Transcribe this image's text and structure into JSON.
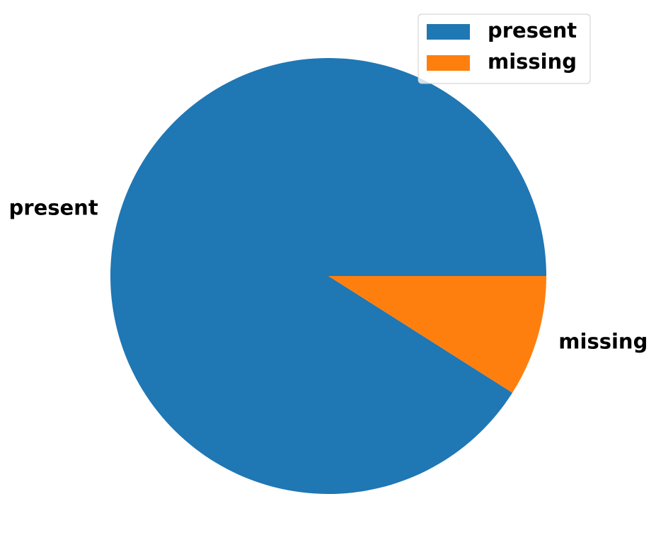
{
  "chart_data": {
    "type": "pie",
    "title": "",
    "categories": [
      "present",
      "missing"
    ],
    "values": [
      91,
      9
    ],
    "colors": [
      "#1f77b4",
      "#ff7f0e"
    ],
    "start_angle_deg": 0,
    "direction": "counterclockwise",
    "legend": {
      "placement": "upper-right",
      "entries": [
        "present",
        "missing"
      ]
    }
  }
}
